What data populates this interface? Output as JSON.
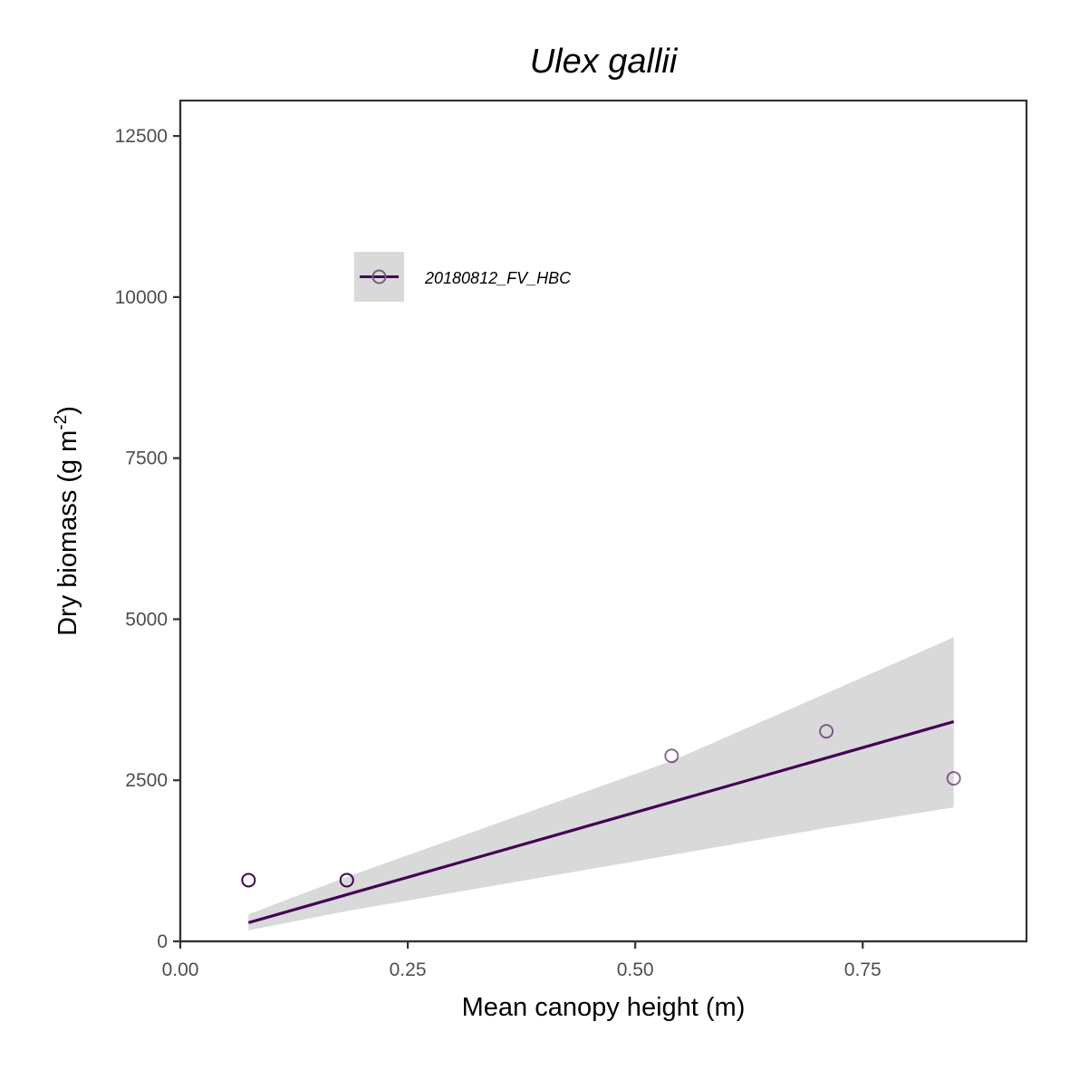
{
  "chart_data": {
    "type": "scatter",
    "title": "Ulex gallii",
    "xlabel": "Mean canopy height (m)",
    "ylabel_main": "Dry biomass (g m",
    "ylabel_sup": "-2",
    "ylabel_close": ")",
    "xlim": [
      0,
      0.93
    ],
    "ylim": [
      0,
      13050
    ],
    "x_ticks": [
      0,
      0.25,
      0.5,
      0.75
    ],
    "x_tick_labels": [
      "0.00",
      "0.25",
      "0.50",
      "0.75"
    ],
    "y_ticks": [
      0,
      2500,
      5000,
      7500,
      10000,
      12500
    ],
    "y_tick_labels": [
      "0",
      "2500",
      "5000",
      "7500",
      "10000",
      "12500"
    ],
    "grid": false,
    "legend_position": "top-left",
    "series": [
      {
        "name": "20180812_FV_HBC",
        "color": "#440154",
        "points": [
          {
            "x": 0.075,
            "y": 950
          },
          {
            "x": 0.183,
            "y": 950
          },
          {
            "x": 0.54,
            "y": 2880
          },
          {
            "x": 0.71,
            "y": 3260
          },
          {
            "x": 0.85,
            "y": 2530
          }
        ],
        "fit_line": [
          {
            "x": 0.075,
            "y": 290
          },
          {
            "x": 0.85,
            "y": 3410
          }
        ],
        "confidence_band": {
          "x": [
            0.075,
            0.183,
            0.54,
            0.71,
            0.85
          ],
          "upper": [
            420,
            1000,
            2800,
            3850,
            4720
          ],
          "lower": [
            170,
            470,
            1340,
            1760,
            2080
          ]
        }
      }
    ],
    "colors": {
      "series": "#440154",
      "band": "#d9d9d9",
      "axis": "#333333",
      "tick_label": "#4d4d4d"
    }
  }
}
